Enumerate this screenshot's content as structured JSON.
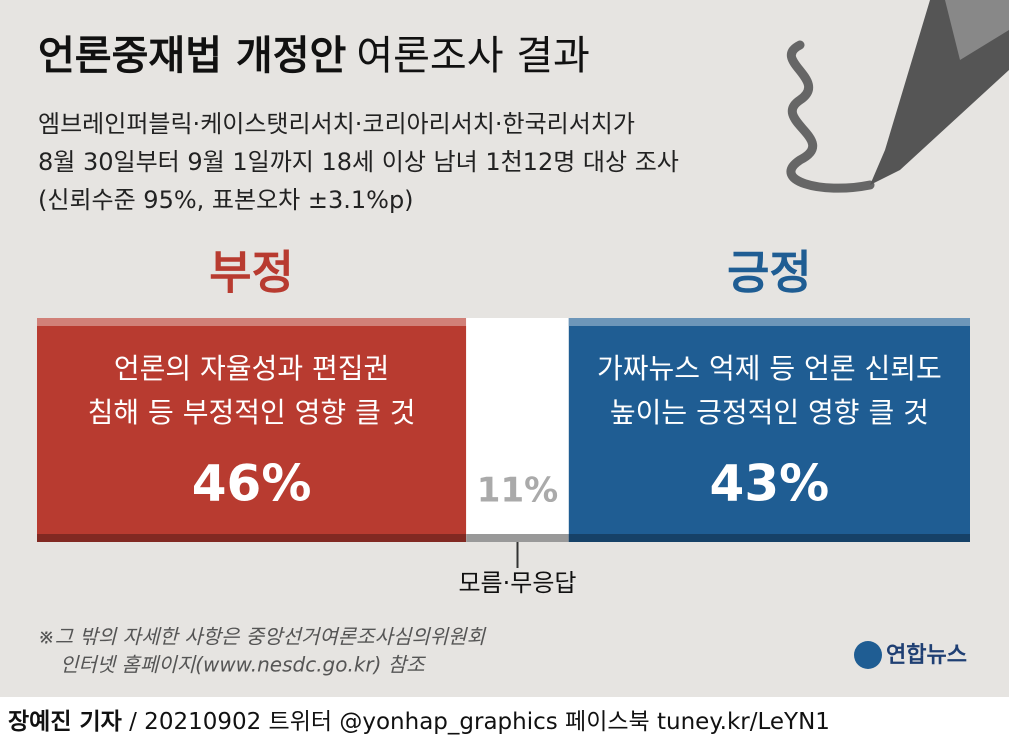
{
  "chart_data": {
    "type": "stacked_bar",
    "title_bold": "언론중재법 개정안",
    "title_light": "여론조사 결과",
    "subtitle": [
      "엠브레인퍼블릭·케이스탯리서치·코리아리서치·한국리서치가",
      "8월 30일부터 9월 1일까지 18세 이상 남녀 1천12명 대상 조사",
      "(신뢰수준 95%, 표본오차 ±3.1%p)"
    ],
    "series": [
      {
        "name": "부정",
        "description": [
          "언론의 자율성과 편집권",
          "침해 등 부정적인 영향 클 것"
        ],
        "color": "#b83b30",
        "values": [
          46
        ],
        "value_labels": [
          "46%"
        ]
      },
      {
        "name": "모름·무응답",
        "color": "#ffffff",
        "values": [
          11
        ],
        "value_labels": [
          "11%"
        ]
      },
      {
        "name": "긍정",
        "description": [
          "가짜뉴스 억제 등 언론 신뢰도",
          "높이는 긍정적인 영향 클 것"
        ],
        "color": "#1f5d93",
        "values": [
          43
        ],
        "value_labels": [
          "43%"
        ]
      }
    ],
    "footnote": [
      "※그 밖의 자세한 사항은 중앙선거여론조사심의위원회",
      "인터넷 홈페이지(www.nesdc.go.kr) 참조"
    ],
    "source": "연합뉴스",
    "credit_bold": "장예진 기자",
    "credit": " / 20210902 트위터 @yonhap_graphics  페이스북 tuney.kr/LeYN1"
  }
}
